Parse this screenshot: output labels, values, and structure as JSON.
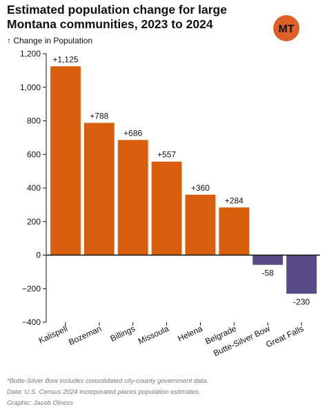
{
  "header": {
    "title": "Estimated population change for large Montana communities, 2023 to 2024",
    "ylabel": "↑ Change in Population"
  },
  "logo": {
    "text": "MT",
    "bg_color": "#e0602a",
    "fg_color": "#111111"
  },
  "notes": {
    "footnote": "*Butte-Silver Bow includes consolidated city-county government data.",
    "source": "Data: U.S. Census 2024 incorporated places population estimates.",
    "credit": "Graphic: Jacob Olness"
  },
  "chart_data": {
    "type": "bar",
    "title": "Estimated population change for large Montana communities, 2023 to 2024",
    "ylabel": "↑ Change in Population",
    "xlabel": "",
    "categories": [
      "Kalispell",
      "Bozeman",
      "Billings",
      "Missoula",
      "Helena",
      "Belgrade",
      "Butte-Silver Bow",
      "Great Falls"
    ],
    "values": [
      1125,
      788,
      686,
      557,
      360,
      284,
      -58,
      -230
    ],
    "data_labels": [
      "+1,125",
      "+788",
      "+686",
      "+557",
      "+360",
      "+284",
      "-58",
      "-230"
    ],
    "ylim": [
      -400,
      1200
    ],
    "yticks": [
      -400,
      -200,
      0,
      200,
      400,
      600,
      800,
      1000,
      1200
    ],
    "ytick_labels": [
      "−400",
      "−200",
      "0",
      "200",
      "400",
      "600",
      "800",
      "1,000",
      "1,200"
    ],
    "colors": {
      "positive": "#d95f0e",
      "negative": "#584a86",
      "axis": "#111111"
    },
    "grid": false,
    "legend": "none"
  }
}
